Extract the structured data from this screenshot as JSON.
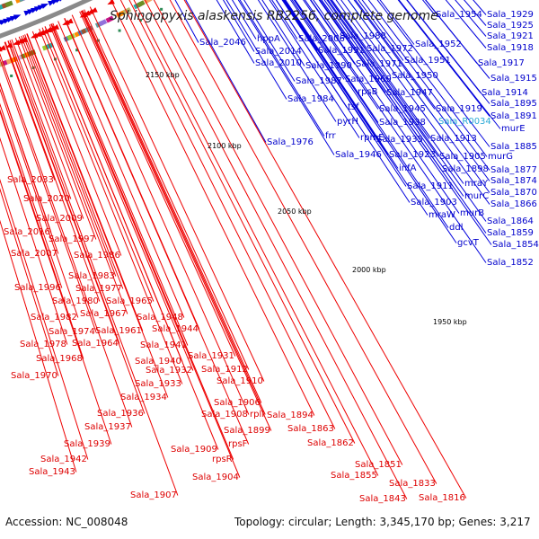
{
  "title": "Sphingopyxis alaskensis RB2256, complete genome",
  "footer": {
    "accession": "Accession: NC_008048",
    "summary": "Topology: circular; Length: 3,345,170 bp; Genes: 3,217"
  },
  "ticks": [
    "2150 kbp",
    "2100 kbp",
    "2050 kbp",
    "2000 kbp",
    "1950 kbp"
  ],
  "colors": {
    "forward": "#0000dd",
    "reverse": "#ee0000",
    "highlight": "#2aa9d6",
    "backbone": "#888888"
  },
  "labels_top": [
    "hppA",
    "Sala_2046",
    "Sala_2014",
    "Sala_2010",
    "Sala_2006",
    "Sala_1988",
    "Sala_1991",
    "Sala_1990",
    "Sala_1987",
    "Sala_1984",
    "Sala_1976",
    "Sala_1972",
    "Sala_1971",
    "Sala_1969",
    "rpsB",
    "tsf",
    "pyrH",
    "frr",
    "rpmE",
    "Sala_1946",
    "Sala_1947",
    "Sala_1945",
    "Sala_1938",
    "Sala_1935",
    "Sala_1923",
    "infA",
    "Sala_1954",
    "Sala_1952",
    "Sala_1951",
    "Sala_1950",
    "Sala_1919",
    "Sala_R0034",
    "Sala_1913",
    "Sala_1905",
    "Sala_1898",
    "Sala_1911",
    "Sala_1903",
    "mraW",
    "mraY",
    "murC",
    "murB",
    "ddl",
    "gcvT",
    "Sala_1929",
    "Sala_1925",
    "Sala_1921",
    "Sala_1918",
    "Sala_1917",
    "Sala_1915",
    "Sala_1914",
    "Sala_1895",
    "Sala_1891",
    "murE",
    "Sala_1885",
    "murG",
    "Sala_1877",
    "Sala_1874",
    "Sala_1870",
    "Sala_1866",
    "Sala_1864",
    "Sala_1859",
    "Sala_1854",
    "Sala_1852"
  ],
  "labels_bottom": [
    "Sala_2033",
    "Sala_2020",
    "Sala_2009",
    "Sala_2016",
    "Sala_1997",
    "Sala_2007",
    "Sala_1986",
    "Sala_1983",
    "Sala_1996",
    "Sala_1977",
    "Sala_1980",
    "Sala_1965",
    "Sala_1982",
    "Sala_1967",
    "Sala_1974",
    "Sala_1961",
    "Sala_1978",
    "Sala_1964",
    "Sala_1948",
    "Sala_1944",
    "Sala_1968",
    "Sala_1941",
    "Sala_1970",
    "Sala_1940",
    "Sala_1931",
    "Sala_1932",
    "Sala_1912",
    "Sala_1933",
    "Sala_1910",
    "Sala_1934",
    "Sala_1906",
    "Sala_1936",
    "Sala_1908",
    "rplI",
    "Sala_1894",
    "Sala_1937",
    "Sala_1899",
    "Sala_1863",
    "Sala_1939",
    "Sala_1862",
    "rpsF",
    "Sala_1942",
    "Sala_1909",
    "Sala_1943",
    "Sala_1904",
    "rpsR",
    "Sala_1851",
    "Sala_1855",
    "Sala_1833",
    "Sala_1843",
    "Sala_1816",
    "Sala_1907"
  ]
}
